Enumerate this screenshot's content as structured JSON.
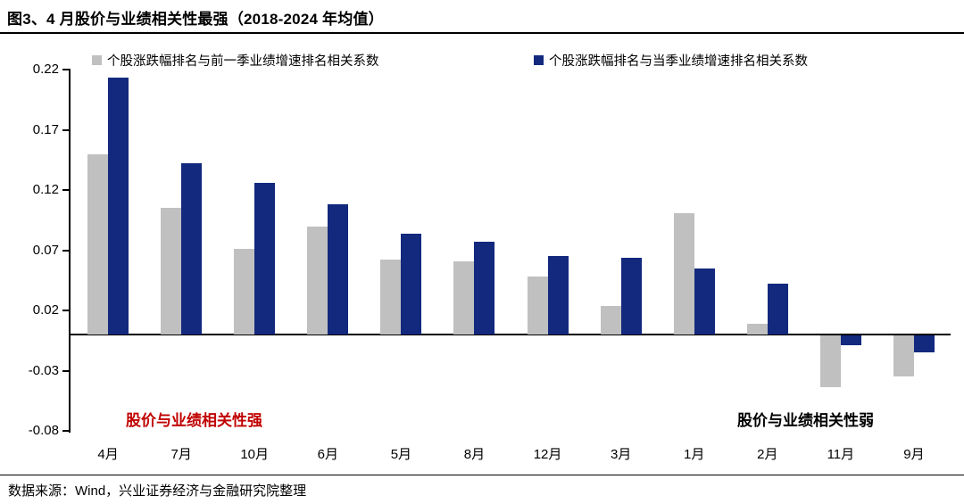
{
  "title": "图3、4 月股价与业绩相关性最强（2018-2024 年均值）",
  "footer": {
    "source": "数据来源：Wind，兴业证券经济与金融研究院整理"
  },
  "annotations": {
    "strong": "股价与业绩相关性强",
    "weak": "股价与业绩相关性弱"
  },
  "colors": {
    "gray_series": "#C0C0C0",
    "blue_series": "#12297E",
    "red_annotation": "#C00000",
    "axis": "#000000"
  },
  "chart_data": {
    "type": "bar",
    "title": "图3、4 月股价与业绩相关性最强（2018-2024 年均值）",
    "categories": [
      "4月",
      "7月",
      "10月",
      "6月",
      "5月",
      "8月",
      "12月",
      "3月",
      "1月",
      "2月",
      "11月",
      "9月"
    ],
    "series": [
      {
        "name": "个股涨跌幅排名与前一季业绩增速排名相关系数",
        "color": "#C0C0C0",
        "values": [
          0.15,
          0.105,
          0.071,
          0.09,
          0.062,
          0.061,
          0.048,
          0.024,
          0.101,
          0.009,
          -0.044,
          -0.035
        ]
      },
      {
        "name": "个股涨跌幅排名与当季业绩增速排名相关系数",
        "color": "#12297E",
        "values": [
          0.213,
          0.142,
          0.126,
          0.108,
          0.084,
          0.077,
          0.065,
          0.064,
          0.055,
          0.042,
          -0.009,
          -0.015
        ]
      }
    ],
    "xlabel": "",
    "ylabel": "",
    "ylim": [
      -0.08,
      0.22
    ],
    "yticks": [
      0.22,
      0.17,
      0.12,
      0.07,
      0.02,
      -0.03,
      -0.08
    ],
    "grid": false,
    "legend_position": "top"
  }
}
